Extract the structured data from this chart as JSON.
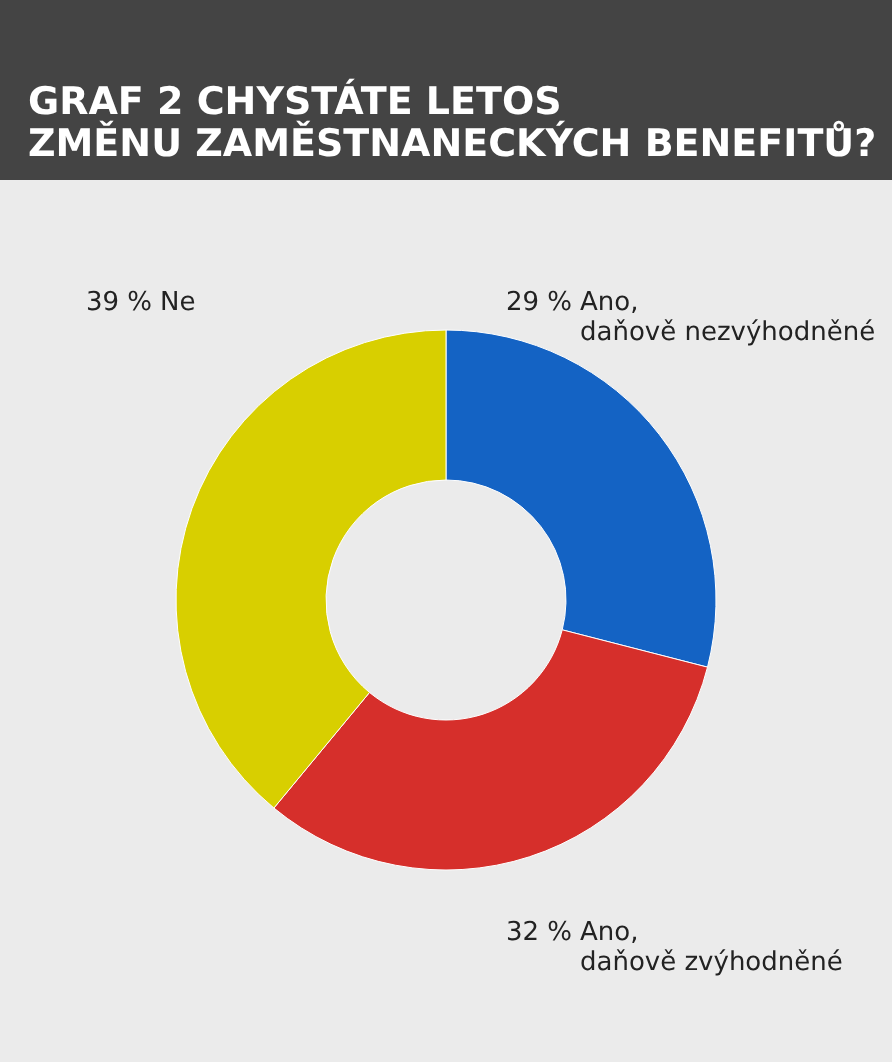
{
  "chart_data": {
    "type": "donut",
    "title": "GRAF 2 CHYSTÁTE LETOS ZMĚNU ZAMĚSTNANECKÝCH BENEFITŮ?",
    "categories": [
      "Ano, daňově nezvýhodněné",
      "Ano, daňově zvýhodněné",
      "Ne"
    ],
    "values": [
      29,
      32,
      39
    ],
    "colors": [
      "#1463c4",
      "#d62f2b",
      "#d8cf00"
    ],
    "value_labels": [
      "29 %",
      "32 %",
      "39 %"
    ]
  }
}
